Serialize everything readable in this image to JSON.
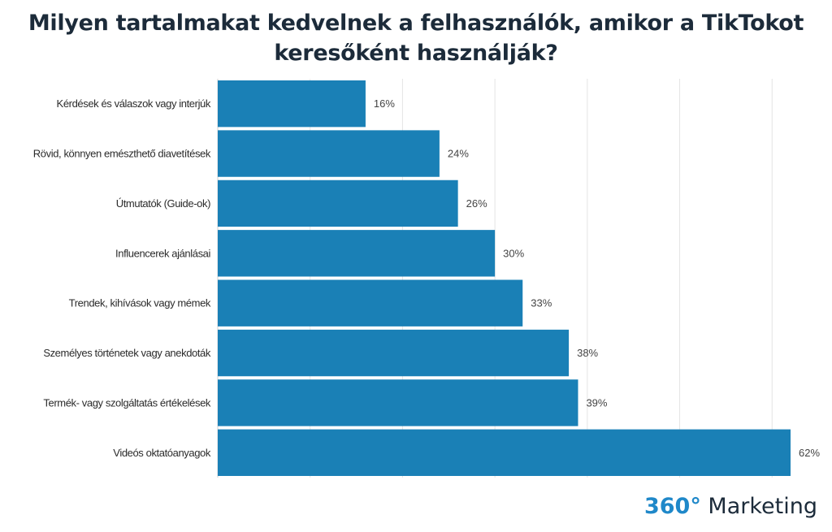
{
  "chart_data": {
    "type": "bar",
    "orientation": "horizontal",
    "title": "Milyen tartalmakat kedvelnek a felhasználók, amikor a TikTokot keresőként használják?",
    "title_lines": [
      "Milyen tartalmakat kedvelnek a felhasználók, amikor a TikTokot",
      "keresőként használják?"
    ],
    "categories": [
      "Kérdések és válaszok vagy interjúk",
      "Rövid, könnyen emészthető diavetítések",
      "Útmutatók (Guide-ok)",
      "Influencerek ajánlásai",
      "Trendek, kihívások vagy mémek",
      "Személyes történetek vagy anekdoták",
      "Termék- vagy szolgáltatás értékelések",
      "Videós oktatóanyagok"
    ],
    "values": [
      16,
      24,
      26,
      30,
      33,
      38,
      39,
      62
    ],
    "value_labels": [
      "16%",
      "24%",
      "26%",
      "30%",
      "33%",
      "38%",
      "39%",
      "62%"
    ],
    "unit": "%",
    "xlim": [
      0,
      62
    ],
    "xlabel": "",
    "ylabel": "",
    "grid": "vertical",
    "legend": "none",
    "bar_color": "#1a80b6",
    "gridline_color": "#e4e4e4"
  },
  "brand": {
    "accent": "360°",
    "rest": " Marketing",
    "accent_color": "#1f88c9",
    "text_color": "#1c2b3a"
  }
}
